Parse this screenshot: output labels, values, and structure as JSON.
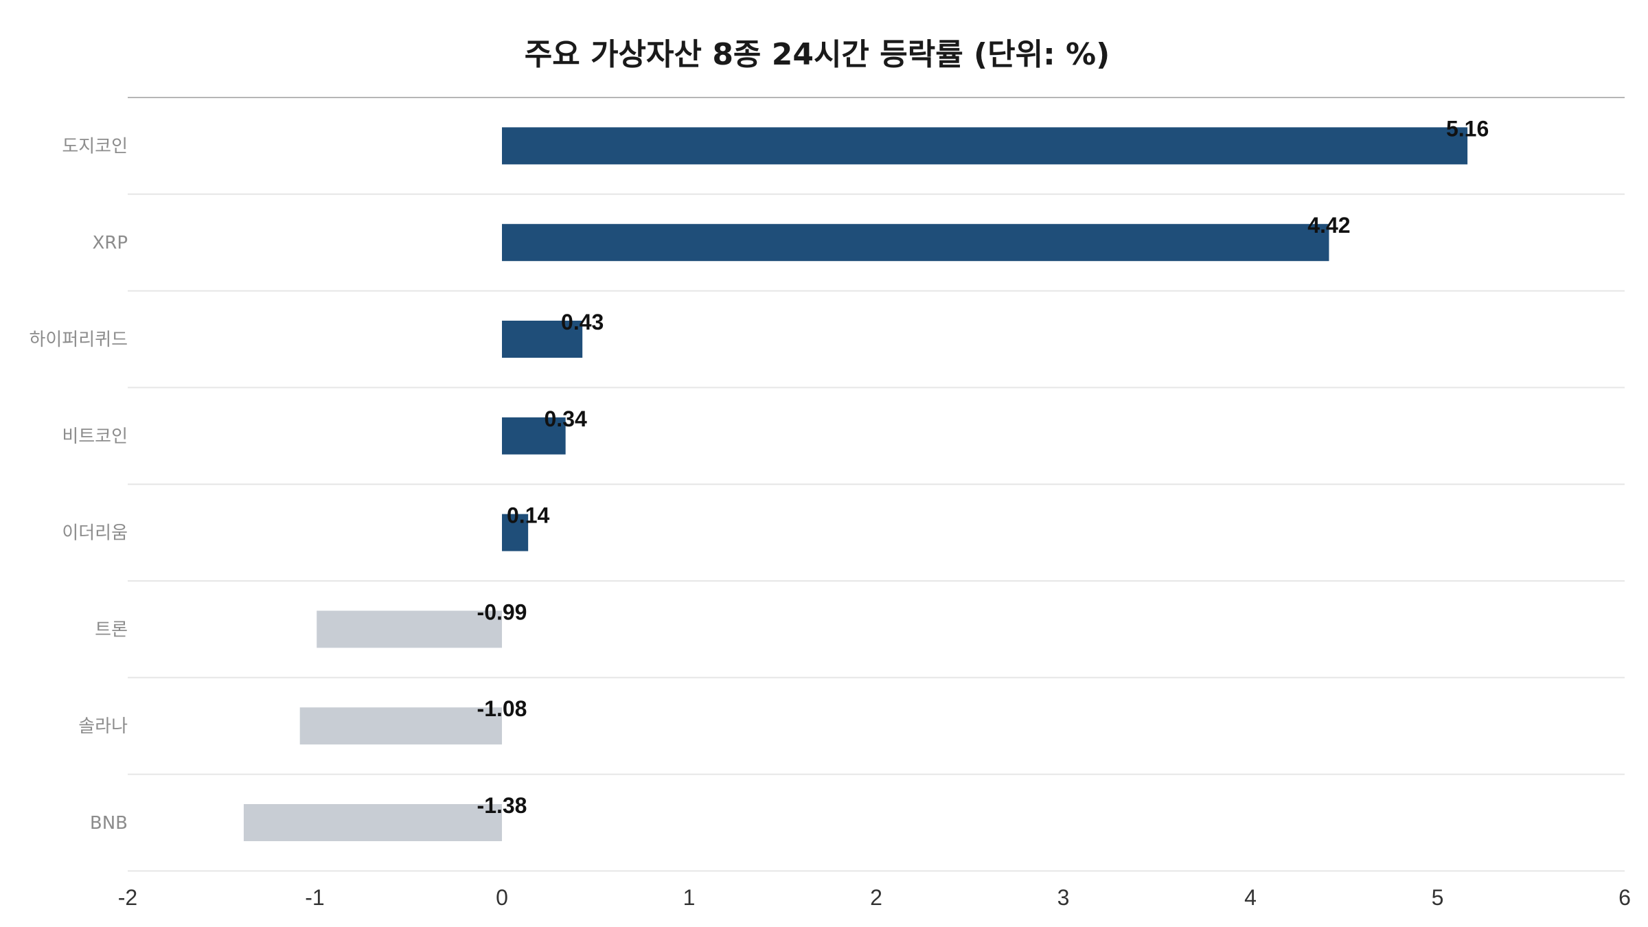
{
  "chart_data": {
    "type": "bar",
    "orientation": "horizontal",
    "title": "주요 가상자산 8종 24시간 등락률 (단위: %)",
    "xlabel": "",
    "ylabel": "",
    "categories": [
      "도지코인",
      "XRP",
      "하이퍼리퀴드",
      "비트코인",
      "이더리움",
      "트론",
      "솔라나",
      "BNB"
    ],
    "values": [
      5.16,
      4.42,
      0.43,
      0.34,
      0.14,
      -0.99,
      -1.08,
      -1.38
    ],
    "value_labels": [
      "5.16",
      "4.42",
      "0.43",
      "0.34",
      "0.14",
      "-0.99",
      "-1.08",
      "-1.38"
    ],
    "xlim": [
      -2,
      6
    ],
    "xticks": [
      -2,
      -1,
      0,
      1,
      2,
      3,
      4,
      5,
      6
    ],
    "xtick_labels": [
      "-2",
      "-1",
      "0",
      "1",
      "2",
      "3",
      "4",
      "5",
      "6"
    ],
    "grid": "horizontal separators between categories",
    "legend": "none",
    "colors": {
      "positive": "#1f4e79",
      "negative": "#c8cdd4",
      "title_rule": "#b5b5b5",
      "separator": "#e6e6e6"
    }
  }
}
